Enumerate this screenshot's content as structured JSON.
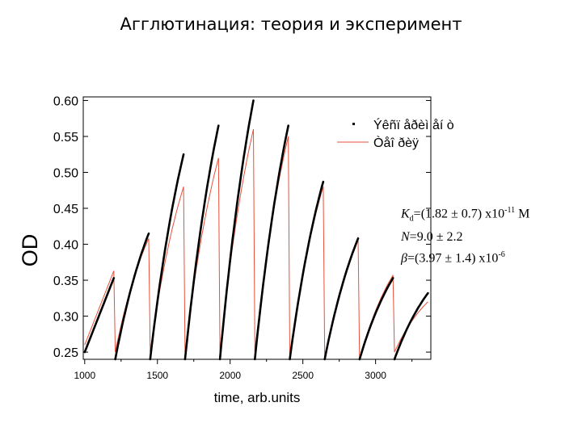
{
  "slide": {
    "title": "Агглютинация: теория и эксперимент"
  },
  "colors": {
    "experiment": "#000000",
    "theory": "#e8503a"
  },
  "chart_data": {
    "type": "line",
    "title": "",
    "xlabel": "time, arb.units",
    "ylabel": "OD",
    "xlim": [
      990,
      3380
    ],
    "ylim": [
      0.24,
      0.605
    ],
    "x_ticks": [
      1000,
      1500,
      2000,
      2500,
      3000
    ],
    "y_ticks": [
      0.25,
      0.3,
      0.35,
      0.4,
      0.45,
      0.5,
      0.55,
      0.6
    ],
    "x_tick_labels": [
      "1000",
      "1500",
      "2000",
      "2500",
      "3000"
    ],
    "y_tick_labels": [
      "0.25",
      "0.30",
      "0.35",
      "0.40",
      "0.45",
      "0.50",
      "0.55",
      "0.60"
    ],
    "grid": false,
    "legend": {
      "position": "top-right",
      "entries": [
        "Ýêñï åðèì åí ò",
        "Òåî ðèÿ"
      ]
    },
    "series": [
      {
        "name": "Ýêñï åðèì åí ò",
        "style": "thick black",
        "segments": [
          {
            "x": [
              1000,
              1200
            ],
            "y": [
              0.25,
              0.353
            ]
          },
          {
            "x": [
              1210,
              1440
            ],
            "y": [
              0.24,
              0.415
            ]
          },
          {
            "x": [
              1450,
              1680
            ],
            "y": [
              0.24,
              0.525
            ]
          },
          {
            "x": [
              1690,
              1920
            ],
            "y": [
              0.24,
              0.565
            ]
          },
          {
            "x": [
              1930,
              2160
            ],
            "y": [
              0.24,
              0.6
            ]
          },
          {
            "x": [
              2170,
              2400
            ],
            "y": [
              0.24,
              0.565
            ]
          },
          {
            "x": [
              2410,
              2640
            ],
            "y": [
              0.24,
              0.487
            ]
          },
          {
            "x": [
              2650,
              2880
            ],
            "y": [
              0.24,
              0.408
            ]
          },
          {
            "x": [
              2890,
              3120
            ],
            "y": [
              0.24,
              0.353
            ]
          },
          {
            "x": [
              3130,
              3360
            ],
            "y": [
              0.24,
              0.332
            ]
          }
        ]
      },
      {
        "name": "Òåî ðèÿ",
        "style": "thin red",
        "segments": [
          {
            "x": [
              1000,
              1200
            ],
            "y": [
              0.26,
              0.363
            ]
          },
          {
            "x": [
              1210,
              1440
            ],
            "y": [
              0.25,
              0.408
            ]
          },
          {
            "x": [
              1450,
              1680
            ],
            "y": [
              0.25,
              0.48
            ]
          },
          {
            "x": [
              1690,
              1920
            ],
            "y": [
              0.25,
              0.52
            ]
          },
          {
            "x": [
              1930,
              2160
            ],
            "y": [
              0.25,
              0.56
            ]
          },
          {
            "x": [
              2170,
              2400
            ],
            "y": [
              0.25,
              0.55
            ]
          },
          {
            "x": [
              2410,
              2640
            ],
            "y": [
              0.24,
              0.48
            ]
          },
          {
            "x": [
              2650,
              2880
            ],
            "y": [
              0.24,
              0.41
            ]
          },
          {
            "x": [
              2890,
              3120
            ],
            "y": [
              0.24,
              0.357
            ]
          },
          {
            "x": [
              3130,
              3360
            ],
            "y": [
              0.25,
              0.32
            ]
          }
        ]
      }
    ]
  },
  "params": {
    "kd_symbol": "K",
    "kd_sub": "d",
    "kd_value": "=(1.82 ± 0.7) x10",
    "kd_exp": "-11",
    "kd_unit": " M",
    "n_symbol": "N",
    "n_value": "=9.0  ± 2.2",
    "beta_symbol": "β",
    "beta_value": "=(3.97 ± 1.4) x10",
    "beta_exp": "-6"
  }
}
